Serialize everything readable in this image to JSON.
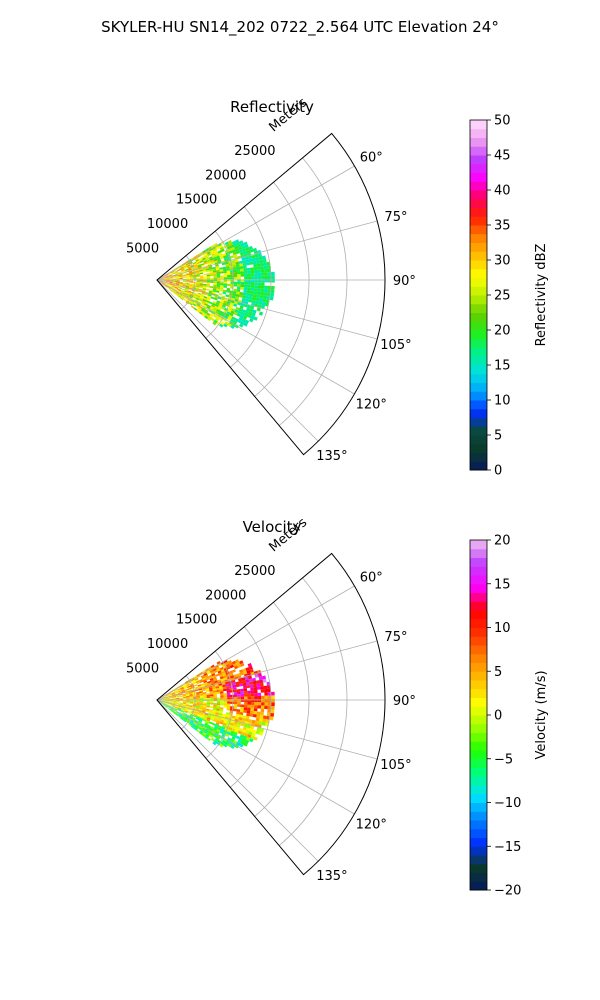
{
  "title": "SKYLER-HU  SN14_202  0722_2.564 UTC Elevation 24°",
  "chart_data": [
    {
      "type": "heatmap",
      "projection": "polar-sector",
      "title": "Reflectivity",
      "range_label": "Meters",
      "theta_range_deg": [
        50,
        140
      ],
      "r_max_m": 30000,
      "radial_ticks": [
        5000,
        10000,
        15000,
        20000,
        25000
      ],
      "radial_tick_labels": [
        "5000",
        "10000",
        "15000",
        "20000",
        "25000"
      ],
      "angle_ticks_deg": [
        60,
        75,
        90,
        105,
        120,
        135
      ],
      "angle_tick_labels": [
        "60°",
        "75°",
        "90°",
        "105°",
        "120°",
        "135°"
      ],
      "grid": true,
      "colorbar": {
        "label": "Reflectivity dBZ",
        "min": 0,
        "max": 50,
        "ticks": [
          0,
          5,
          10,
          15,
          20,
          25,
          30,
          35,
          40,
          45,
          50
        ],
        "tick_labels": [
          "0",
          "5",
          "10",
          "15",
          "20",
          "25",
          "30",
          "35",
          "40",
          "45",
          "50"
        ],
        "colormap": "pyart_HomeyerRainbow"
      },
      "echo_extent_m": 15500,
      "echo_az_range_deg": [
        58,
        128
      ],
      "echo_values_range": [
        10,
        40
      ]
    },
    {
      "type": "heatmap",
      "projection": "polar-sector",
      "title": "Velocity",
      "range_label": "Meters",
      "theta_range_deg": [
        50,
        140
      ],
      "r_max_m": 30000,
      "radial_ticks": [
        5000,
        10000,
        15000,
        20000,
        25000
      ],
      "radial_tick_labels": [
        "5000",
        "10000",
        "15000",
        "20000",
        "25000"
      ],
      "angle_ticks_deg": [
        60,
        75,
        90,
        105,
        120,
        135
      ],
      "angle_tick_labels": [
        "60°",
        "75°",
        "90°",
        "105°",
        "120°",
        "135°"
      ],
      "grid": true,
      "colorbar": {
        "label": "Velocity (m/s)",
        "min": -20,
        "max": 20,
        "ticks": [
          -20,
          -15,
          -10,
          -5,
          0,
          5,
          10,
          15,
          20
        ],
        "tick_labels": [
          "−20",
          "−15",
          "−10",
          "−5",
          "0",
          "5",
          "10",
          "15",
          "20"
        ],
        "colormap": "pyart_BuDRd18"
      },
      "echo_extent_m": 15500,
      "echo_az_range_deg": [
        58,
        128
      ],
      "echo_values_range": [
        -8,
        14
      ]
    }
  ],
  "colors": {
    "reflectivity_stops": [
      "#061a5c",
      "#0a3a2c",
      "#0a4a3c",
      "#0030ff",
      "#00a0ff",
      "#00e0e0",
      "#00f090",
      "#20f020",
      "#60d000",
      "#c0f000",
      "#ffff00",
      "#ffc000",
      "#ff8000",
      "#ff2000",
      "#ff0060",
      "#ff00ff",
      "#c040ff",
      "#f0a0f0",
      "#ffe0ff"
    ],
    "velocity_stops": [
      "#061a5c",
      "#0a3a2c",
      "#0030ff",
      "#0080ff",
      "#00e0ff",
      "#00ff80",
      "#20ff00",
      "#a0ff00",
      "#ffff00",
      "#ffc000",
      "#ff8000",
      "#ff3000",
      "#ff0000",
      "#ff00ff",
      "#c040ff",
      "#f0c0f0"
    ]
  }
}
